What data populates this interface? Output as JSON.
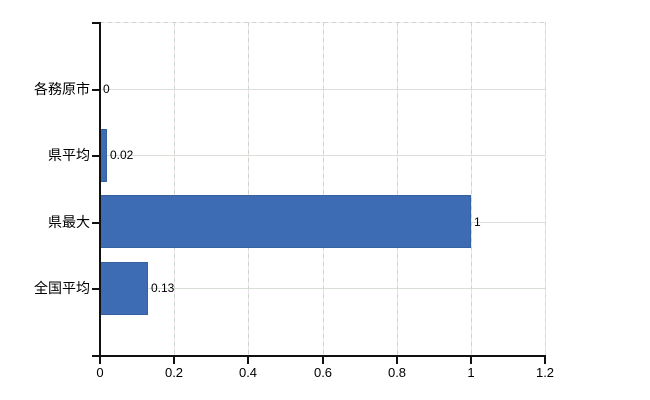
{
  "chart_data": {
    "type": "bar",
    "orientation": "horizontal",
    "title": "",
    "categories": [
      "各務原市",
      "県平均",
      "県最大",
      "全国平均"
    ],
    "series": [
      {
        "name": "",
        "values": [
          0,
          0.02,
          1,
          0.13
        ]
      }
    ],
    "value_labels": [
      "0",
      "0.02",
      "1",
      "0.13"
    ],
    "x_axis": {
      "min": 0,
      "max": 1.2,
      "ticks": [
        0,
        0.2,
        0.4,
        0.6,
        0.8,
        1,
        1.2
      ],
      "tick_labels": [
        "0",
        "0.2",
        "0.4",
        "0.6",
        "0.8",
        "1",
        "1.2"
      ]
    },
    "y_axis": {
      "label": ""
    },
    "legend": "none",
    "grid": {
      "horizontal_solid": true,
      "vertical_dashed": true
    },
    "colors": {
      "bar": "#3e6cb4",
      "bar_border": "#35619f",
      "h_grid": "#d7dfd6",
      "axis": "#111111",
      "text": "#000000",
      "background": "#ffffff"
    }
  }
}
